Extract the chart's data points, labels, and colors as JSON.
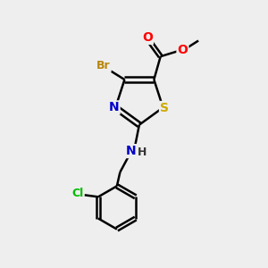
{
  "background_color": "#eeeeee",
  "bond_color": "#000000",
  "atom_colors": {
    "Br": "#b8860b",
    "N": "#0000cc",
    "S": "#ccaa00",
    "O": "#ff0000",
    "Cl": "#00bb00",
    "C": "#000000",
    "H": "#333333"
  },
  "figsize": [
    3.0,
    3.0
  ],
  "dpi": 100,
  "xlim": [
    0,
    10
  ],
  "ylim": [
    0,
    10
  ]
}
